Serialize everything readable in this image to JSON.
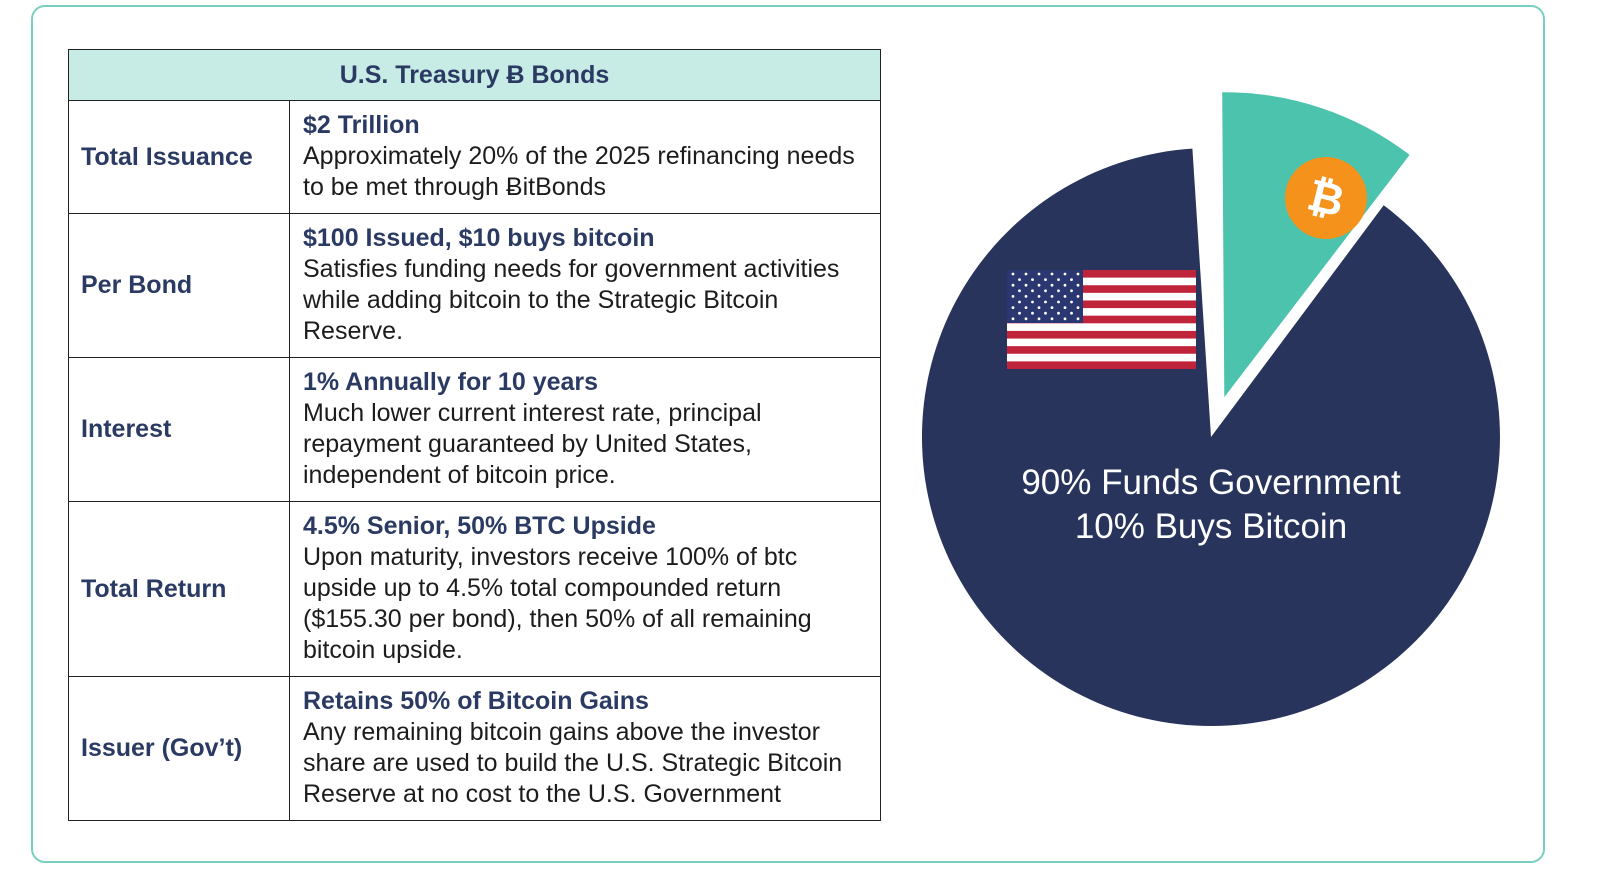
{
  "table": {
    "title": "U.S. Treasury Ƀ Bonds",
    "rows": [
      {
        "label": "Total Issuance",
        "headline": "$2 Trillion",
        "text": "Approximately 20% of the 2025 refinancing needs to be met through ɃitBonds"
      },
      {
        "label": "Per Bond",
        "headline": "$100 Issued, $10 buys bitcoin",
        "text": "Satisfies funding needs for government activities while adding bitcoin to the Strategic Bitcoin Reserve."
      },
      {
        "label": "Interest",
        "headline": "1% Annually for 10 years",
        "text": "Much lower current interest rate, principal repayment guaranteed by United States, independent of bitcoin price."
      },
      {
        "label": "Total Return",
        "headline": "4.5% Senior, 50% BTC Upside",
        "text": "Upon maturity, investors receive 100% of btc upside up to 4.5% total compounded return ($155.30 per bond), then 50% of all remaining bitcoin upside."
      },
      {
        "label": "Issuer (Gov’t)",
        "headline": "Retains 50% of Bitcoin Gains",
        "text": "Any remaining bitcoin gains above the investor share are used to build the U.S. Strategic Bitcoin Reserve at no cost to the U.S. Government"
      }
    ]
  },
  "chart_data": {
    "type": "pie",
    "slices": [
      {
        "value": 90,
        "color": "#28345b",
        "icon": "us-flag-icon"
      },
      {
        "value": 10,
        "color": "#4cc3ad",
        "icon": "bitcoin-icon"
      }
    ],
    "annotation_lines": [
      "90% Funds Government",
      "10% Buys Bitcoin"
    ],
    "bitcoin_symbol": "₿"
  },
  "colors": {
    "navy": "#28345b",
    "teal": "#4cc3ad",
    "header_fill": "#c7ebe5",
    "bitcoin_orange": "#f5921b",
    "frame_border": "#79cfc1"
  }
}
